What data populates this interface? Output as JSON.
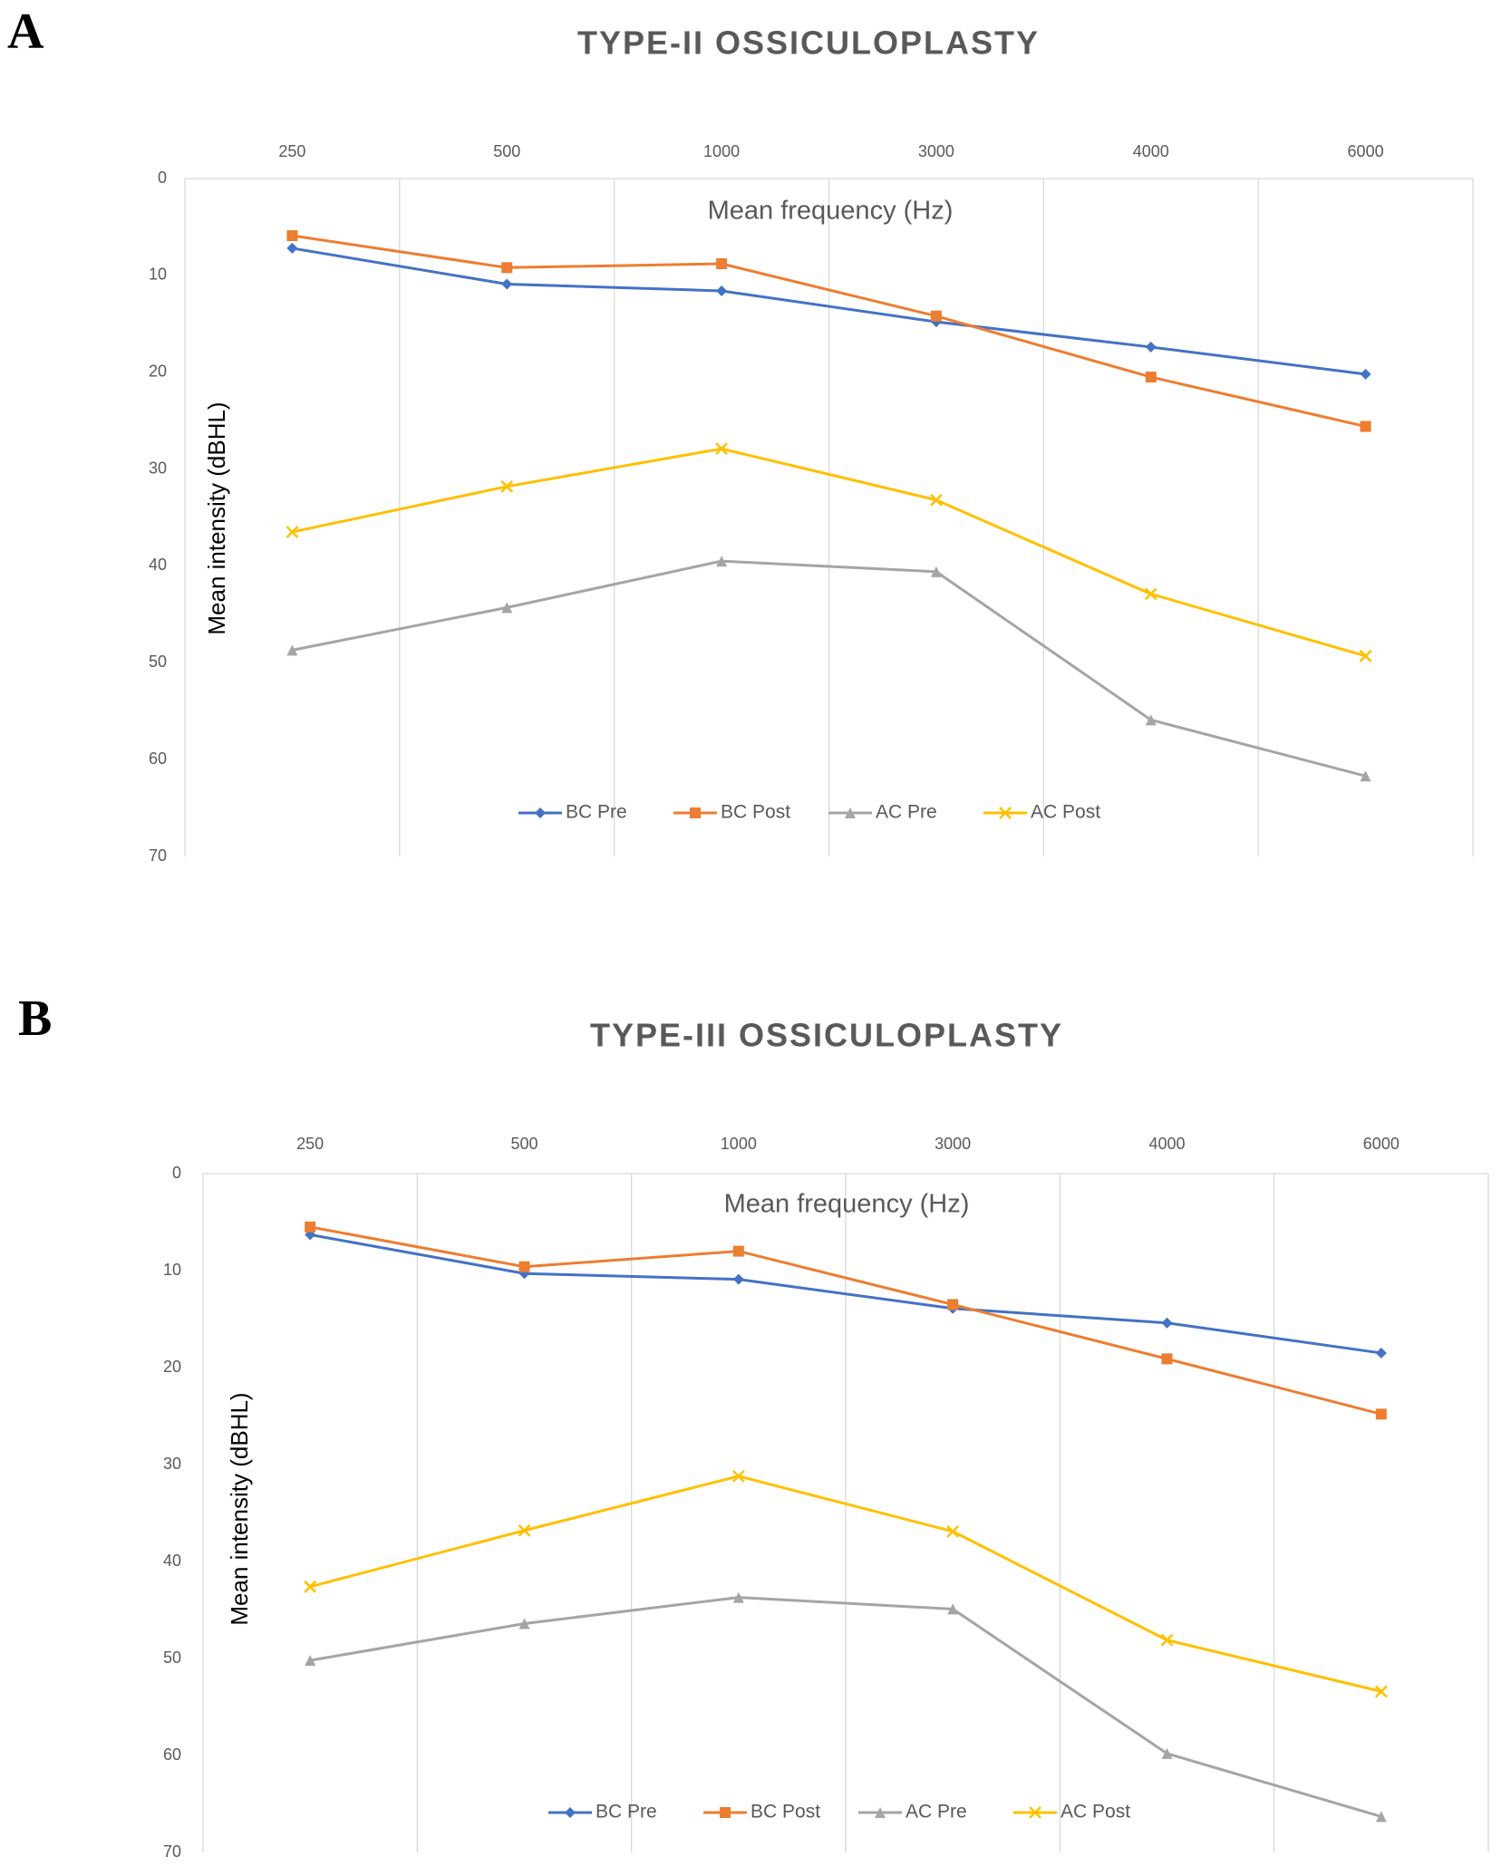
{
  "chart_data": [
    {
      "type": "line",
      "panel_label": "A",
      "title": "TYPE-II OSSICULOPLASTY",
      "x_label": "Mean frequency (Hz)",
      "y_label": "Mean intensity (dBHL)",
      "categories": [
        "250",
        "500",
        "1000",
        "3000",
        "4000",
        "6000"
      ],
      "ylim": [
        0,
        70
      ],
      "yticks": [
        0,
        10,
        20,
        30,
        40,
        50,
        60,
        70
      ],
      "y_inverted": true,
      "grid": true,
      "legend": "bottom",
      "series": [
        {
          "name": "BC Pre",
          "color": "#4472c4",
          "marker": "diamond",
          "values": [
            7.2,
            10.9,
            11.6,
            14.8,
            17.4,
            20.2
          ]
        },
        {
          "name": "BC Post",
          "color": "#ed7d31",
          "marker": "square",
          "values": [
            5.9,
            9.2,
            8.8,
            14.2,
            20.5,
            25.6
          ]
        },
        {
          "name": "AC Pre",
          "color": "#a5a5a5",
          "marker": "triangle",
          "values": [
            48.7,
            44.3,
            39.5,
            40.6,
            55.9,
            61.7
          ]
        },
        {
          "name": "AC Post",
          "color": "#ffc000",
          "marker": "x",
          "values": [
            36.5,
            31.8,
            27.9,
            33.2,
            42.9,
            49.3
          ]
        }
      ]
    },
    {
      "type": "line",
      "panel_label": "B",
      "title": "TYPE-III OSSICULOPLASTY",
      "x_label": "Mean frequency (Hz)",
      "y_label": "Mean intensity (dBHL)",
      "categories": [
        "250",
        "500",
        "1000",
        "3000",
        "4000",
        "6000"
      ],
      "ylim": [
        0,
        70
      ],
      "yticks": [
        0,
        10,
        20,
        30,
        40,
        50,
        60,
        70
      ],
      "y_inverted": true,
      "grid": true,
      "legend": "bottom",
      "series": [
        {
          "name": "BC Pre",
          "color": "#4472c4",
          "marker": "diamond",
          "values": [
            6.3,
            10.3,
            10.9,
            13.9,
            15.4,
            18.5
          ]
        },
        {
          "name": "BC Post",
          "color": "#ed7d31",
          "marker": "square",
          "values": [
            5.5,
            9.6,
            8.0,
            13.5,
            19.1,
            24.8
          ]
        },
        {
          "name": "AC Pre",
          "color": "#a5a5a5",
          "marker": "triangle",
          "values": [
            50.2,
            46.4,
            43.7,
            44.9,
            59.8,
            66.3
          ]
        },
        {
          "name": "AC Post",
          "color": "#ffc000",
          "marker": "x",
          "values": [
            42.6,
            36.8,
            31.2,
            36.9,
            48.1,
            53.4
          ]
        }
      ]
    }
  ]
}
